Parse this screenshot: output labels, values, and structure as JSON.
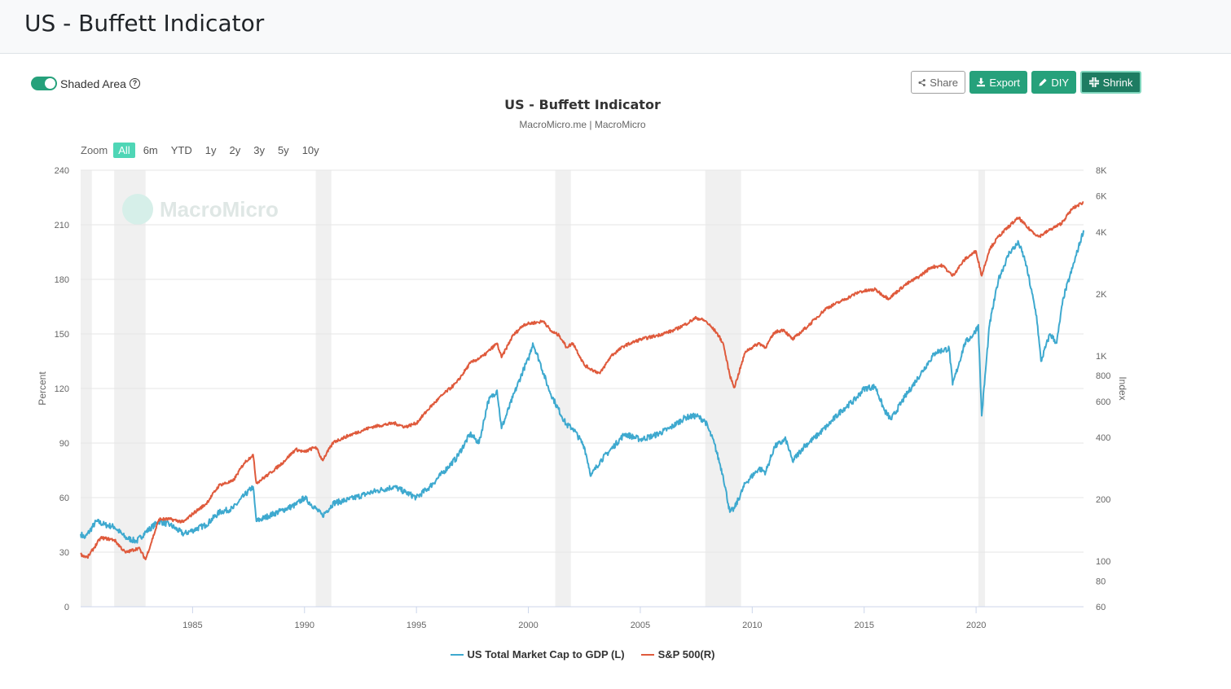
{
  "page": {
    "title": "US - Buffett Indicator"
  },
  "controls": {
    "shaded_area_label": "Shaded Area",
    "help_icon": "question-circle-icon",
    "buttons": {
      "share": "Share",
      "export": "Export",
      "diy": "DIY",
      "shrink": "Shrink"
    }
  },
  "zoom": {
    "label": "Zoom",
    "options": [
      "All",
      "6m",
      "YTD",
      "1y",
      "2y",
      "3y",
      "5y",
      "10y"
    ],
    "active": "All"
  },
  "colors": {
    "accent": "#26a17b",
    "market_cap_series": "#3ea9cf",
    "sp500_series": "#df5a3c",
    "shaded": "#f0f0f0"
  },
  "chart_data": {
    "type": "line",
    "title": "US - Buffett Indicator",
    "subtitle": "MacroMicro.me | MacroMicro",
    "watermark": "MacroMicro",
    "x_range": [
      1980.0,
      2024.8
    ],
    "x_ticks": [
      "1985",
      "1990",
      "1995",
      "2000",
      "2005",
      "2010",
      "2015",
      "2020"
    ],
    "y_left": {
      "label": "Percent",
      "range": [
        0,
        240
      ],
      "ticks": [
        "0",
        "30",
        "60",
        "90",
        "120",
        "150",
        "180",
        "210",
        "240"
      ]
    },
    "y_right": {
      "label": "Index",
      "scale": "log",
      "range": [
        60,
        8000
      ],
      "tick_values": [
        60,
        80,
        100,
        200,
        400,
        600,
        800,
        1000,
        2000,
        4000,
        6000,
        8000
      ],
      "tick_labels": [
        "60",
        "80",
        "100",
        "200",
        "400",
        "600",
        "800",
        "1K",
        "2K",
        "4K",
        "6K",
        "8K"
      ]
    },
    "shaded_periods": [
      [
        1980.0,
        1980.5
      ],
      [
        1981.5,
        1982.9
      ],
      [
        1990.5,
        1991.2
      ],
      [
        2001.2,
        2001.9
      ],
      [
        2007.9,
        2009.5
      ],
      [
        2020.1,
        2020.4
      ]
    ],
    "legend_position": "bottom",
    "series": [
      {
        "name": "US Total Market Cap to GDP (L)",
        "axis": "left",
        "x": [
          1980.0,
          1980.2,
          1980.7,
          1981.1,
          1981.5,
          1982.0,
          1982.5,
          1982.9,
          1983.5,
          1984.0,
          1984.6,
          1985.0,
          1985.6,
          1986.2,
          1986.8,
          1987.3,
          1987.7,
          1987.85,
          1988.4,
          1989.0,
          1989.6,
          1990.0,
          1990.5,
          1990.8,
          1991.3,
          1992.0,
          1993.0,
          1994.0,
          1994.5,
          1995.0,
          1995.6,
          1996.2,
          1996.8,
          1997.4,
          1997.8,
          1998.2,
          1998.6,
          1998.8,
          1999.3,
          1999.8,
          2000.0,
          2000.2,
          2000.5,
          2000.9,
          2001.2,
          2001.7,
          2002.0,
          2002.5,
          2002.8,
          2003.2,
          2003.8,
          2004.3,
          2005.0,
          2005.6,
          2006.3,
          2007.0,
          2007.5,
          2007.9,
          2008.3,
          2008.7,
          2009.0,
          2009.2,
          2009.7,
          2010.3,
          2010.6,
          2011.0,
          2011.5,
          2011.8,
          2012.3,
          2012.8,
          2013.4,
          2014.0,
          2014.6,
          2015.0,
          2015.5,
          2015.9,
          2016.2,
          2016.8,
          2017.3,
          2017.9,
          2018.2,
          2018.8,
          2018.95,
          2019.5,
          2019.9,
          2020.1,
          2020.25,
          2020.6,
          2021.0,
          2021.5,
          2021.9,
          2022.2,
          2022.7,
          2022.9,
          2023.3,
          2023.6,
          2023.9,
          2024.3,
          2024.8
        ],
        "values": [
          40,
          38,
          47,
          45,
          44,
          38,
          36,
          41,
          47,
          45,
          40,
          42,
          45,
          52,
          54,
          61,
          66,
          47,
          50,
          53,
          56,
          60,
          54,
          50,
          57,
          59,
          63,
          66,
          63,
          60,
          66,
          74,
          82,
          95,
          90,
          113,
          119,
          98,
          115,
          131,
          136,
          145,
          135,
          120,
          112,
          100,
          98,
          88,
          72,
          80,
          88,
          95,
          92,
          94,
          98,
          104,
          105,
          102,
          90,
          72,
          52,
          54,
          68,
          76,
          74,
          88,
          92,
          80,
          88,
          93,
          100,
          108,
          114,
          120,
          121,
          108,
          103,
          115,
          124,
          135,
          140,
          142,
          122,
          145,
          150,
          155,
          105,
          155,
          180,
          195,
          200,
          190,
          160,
          135,
          150,
          145,
          170,
          186,
          207
        ]
      },
      {
        "name": "S&P 500(R)",
        "axis": "right",
        "x": [
          1980.0,
          1980.3,
          1980.9,
          1981.5,
          1982.0,
          1982.6,
          1982.9,
          1983.5,
          1984.0,
          1984.6,
          1985.0,
          1985.6,
          1986.2,
          1986.8,
          1987.3,
          1987.7,
          1987.85,
          1988.4,
          1989.0,
          1989.6,
          1990.0,
          1990.5,
          1990.8,
          1991.3,
          1992.0,
          1993.0,
          1994.0,
          1994.5,
          1995.0,
          1995.6,
          1996.2,
          1996.8,
          1997.4,
          1998.0,
          1998.6,
          1998.8,
          1999.3,
          1999.8,
          2000.3,
          2000.7,
          2001.0,
          2001.4,
          2001.7,
          2002.0,
          2002.5,
          2002.8,
          2003.2,
          2003.7,
          2004.3,
          2005.0,
          2005.7,
          2006.5,
          2007.0,
          2007.5,
          2007.9,
          2008.4,
          2008.7,
          2009.0,
          2009.2,
          2009.7,
          2010.3,
          2010.6,
          2011.0,
          2011.4,
          2011.8,
          2012.5,
          2013.3,
          2014.0,
          2014.8,
          2015.5,
          2015.9,
          2016.1,
          2016.8,
          2017.5,
          2018.0,
          2018.5,
          2018.95,
          2019.5,
          2020.0,
          2020.25,
          2020.6,
          2021.0,
          2021.5,
          2021.9,
          2022.3,
          2022.8,
          2023.3,
          2023.8,
          2024.3,
          2024.8
        ],
        "values": [
          108,
          104,
          130,
          127,
          110,
          116,
          102,
          160,
          160,
          155,
          170,
          190,
          235,
          245,
          300,
          330,
          240,
          265,
          300,
          350,
          340,
          360,
          310,
          380,
          410,
          450,
          470,
          450,
          470,
          560,
          650,
          740,
          920,
          1000,
          1150,
          980,
          1250,
          1420,
          1450,
          1470,
          1320,
          1250,
          1100,
          1150,
          900,
          860,
          820,
          1000,
          1120,
          1200,
          1250,
          1330,
          1420,
          1530,
          1480,
          1300,
          1150,
          800,
          700,
          1050,
          1150,
          1100,
          1300,
          1340,
          1200,
          1400,
          1700,
          1850,
          2050,
          2100,
          1950,
          1900,
          2200,
          2450,
          2700,
          2750,
          2450,
          2950,
          3230,
          2450,
          3300,
          3800,
          4300,
          4700,
          4200,
          3800,
          4100,
          4400,
          5200,
          5600
        ]
      }
    ]
  }
}
